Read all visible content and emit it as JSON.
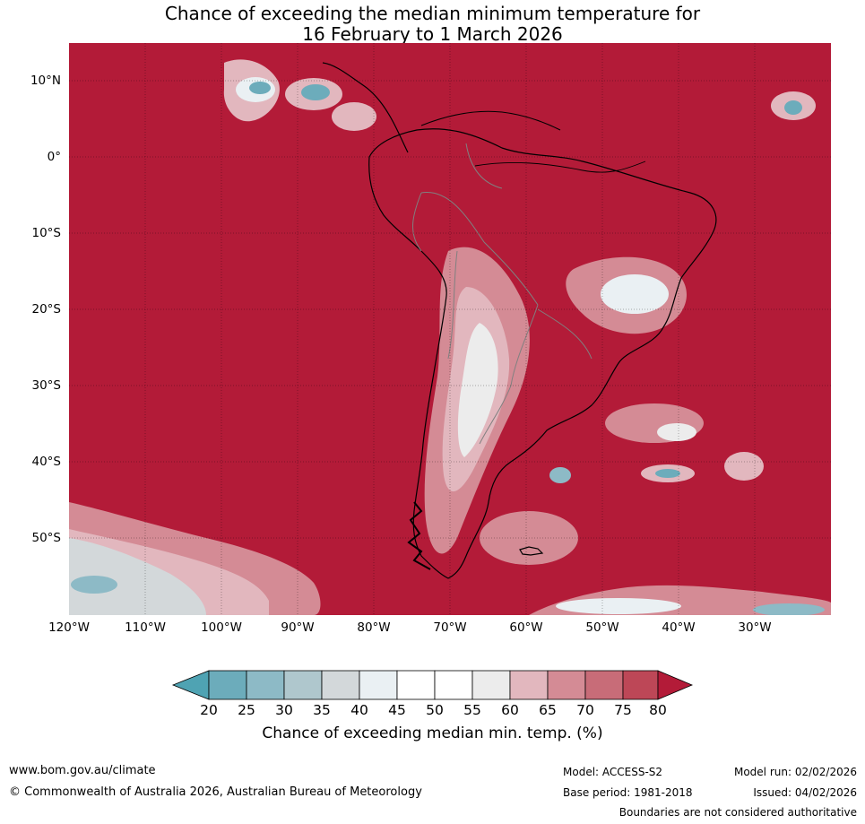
{
  "title": {
    "line1": "Chance of exceeding the median minimum temperature for",
    "line2": "16 February to 1 March 2026"
  },
  "map": {
    "lat_labels": [
      "10°N",
      "0°",
      "10°S",
      "20°S",
      "30°S",
      "40°S",
      "50°S"
    ],
    "lon_labels": [
      "120°W",
      "110°W",
      "100°W",
      "90°W",
      "80°W",
      "70°W",
      "60°W",
      "50°W",
      "40°W",
      "30°W"
    ],
    "colors": {
      "c20": "#4fa3b3",
      "c25": "#6cacbb",
      "c30": "#8dbac6",
      "c35": "#afc7cd",
      "c40": "#d3d8da",
      "c45": "#eaf0f3",
      "c50": "#ffffff",
      "c55": "#ffffff",
      "c60": "#ececec",
      "c65": "#e2b7be",
      "c70": "#d48b95",
      "c75": "#c86c78",
      "c80": "#bd4757",
      "c80plus": "#b31b38"
    }
  },
  "colorbar": {
    "ticks": [
      "20",
      "25",
      "30",
      "35",
      "40",
      "45",
      "50",
      "55",
      "60",
      "65",
      "70",
      "75",
      "80"
    ],
    "label": "Chance of exceeding median min. temp. (%)"
  },
  "footer": {
    "url": "www.bom.gov.au/climate",
    "copyright": "© Commonwealth of Australia 2026, Australian Bureau of Meteorology",
    "model": "Model: ACCESS-S2",
    "base_period": "Base period: 1981-2018",
    "model_run": "Model run: 02/02/2026",
    "issued": "Issued: 04/02/2026",
    "disclaimer": "Boundaries are not considered authoritative"
  }
}
